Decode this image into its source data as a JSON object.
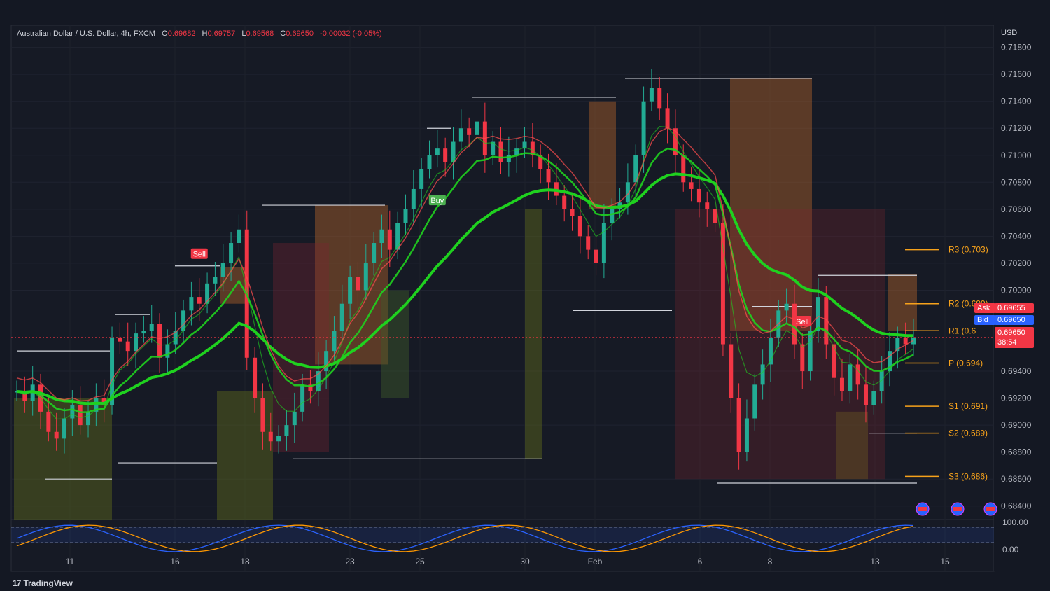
{
  "header": {
    "symbol": "Australian Dollar / U.S. Dollar, 4h, FXCM",
    "open_label": "O",
    "open": "0.69682",
    "high_label": "H",
    "high": "0.69757",
    "low_label": "L",
    "low": "0.69568",
    "close_label": "C",
    "close": "0.69650",
    "change": "-0.00032 (-0.05%)"
  },
  "currency": "USD",
  "brand": "TradingView",
  "price_tags": {
    "ask_label": "Ask",
    "ask": "0.69655",
    "bid_label": "Bid",
    "bid": "0.69650",
    "last": "0.69650",
    "countdown": "38:54"
  },
  "colors": {
    "up": "#22ab94",
    "down": "#f23645",
    "ma": "#1fd11f",
    "resist": "#ff4d4d",
    "pivot": "#f7a21b"
  },
  "chart_data": {
    "type": "candlestick",
    "ylim": [
      0.683,
      0.7185
    ],
    "y_ticks": [
      "0.71800",
      "0.71600",
      "0.71400",
      "0.71200",
      "0.71000",
      "0.70800",
      "0.70600",
      "0.70400",
      "0.70200",
      "0.70000",
      "0.69400",
      "0.69200",
      "0.69000",
      "0.68800",
      "0.68600",
      "0.68400"
    ],
    "x_ticks": [
      "11",
      "16",
      "18",
      "23",
      "25",
      "30",
      "Feb",
      "6",
      "8",
      "13",
      "15"
    ],
    "pivots": [
      {
        "label": "R3 (0.703)",
        "value": 0.703
      },
      {
        "label": "R2 (0.699)",
        "value": 0.699
      },
      {
        "label": "R1 (0.6",
        "value": 0.697
      },
      {
        "label": "P (0.694)",
        "value": 0.6946
      },
      {
        "label": "S1 (0.691)",
        "value": 0.6914
      },
      {
        "label": "S2 (0.689)",
        "value": 0.6894
      },
      {
        "label": "S3 (0.686)",
        "value": 0.6862
      }
    ],
    "signals": [
      {
        "label": "Sell",
        "index": 23
      },
      {
        "label": "Buy",
        "index": 53
      },
      {
        "label": "Sell",
        "index": 99
      }
    ],
    "close_series": [
      0.6925,
      0.6918,
      0.693,
      0.691,
      0.6895,
      0.689,
      0.6905,
      0.6915,
      0.69,
      0.691,
      0.692,
      0.6915,
      0.6965,
      0.6962,
      0.6955,
      0.6968,
      0.697,
      0.6975,
      0.695,
      0.696,
      0.697,
      0.6985,
      0.6995,
      0.699,
      0.7005,
      0.701,
      0.702,
      0.7035,
      0.7045,
      0.695,
      0.692,
      0.6895,
      0.6888,
      0.6892,
      0.69,
      0.691,
      0.693,
      0.6925,
      0.694,
      0.6955,
      0.697,
      0.699,
      0.701,
      0.7,
      0.702,
      0.7035,
      0.7045,
      0.703,
      0.705,
      0.706,
      0.7075,
      0.709,
      0.71,
      0.7105,
      0.7095,
      0.711,
      0.712,
      0.7115,
      0.7125,
      0.71,
      0.711,
      0.7095,
      0.71,
      0.7105,
      0.711,
      0.71,
      0.709,
      0.708,
      0.707,
      0.706,
      0.7055,
      0.704,
      0.703,
      0.702,
      0.705,
      0.706,
      0.7065,
      0.708,
      0.71,
      0.714,
      0.715,
      0.7135,
      0.712,
      0.71,
      0.708,
      0.7075,
      0.7065,
      0.706,
      0.705,
      0.696,
      0.692,
      0.688,
      0.6905,
      0.693,
      0.6945,
      0.6965,
      0.6985,
      0.699,
      0.696,
      0.694,
      0.697,
      0.6995,
      0.696,
      0.6935,
      0.6925,
      0.6945,
      0.693,
      0.6915,
      0.6925,
      0.694,
      0.6955,
      0.6965,
      0.696,
      0.6965
    ],
    "oscillator": {
      "levels": [
        "100.00",
        "0.00"
      ]
    }
  }
}
